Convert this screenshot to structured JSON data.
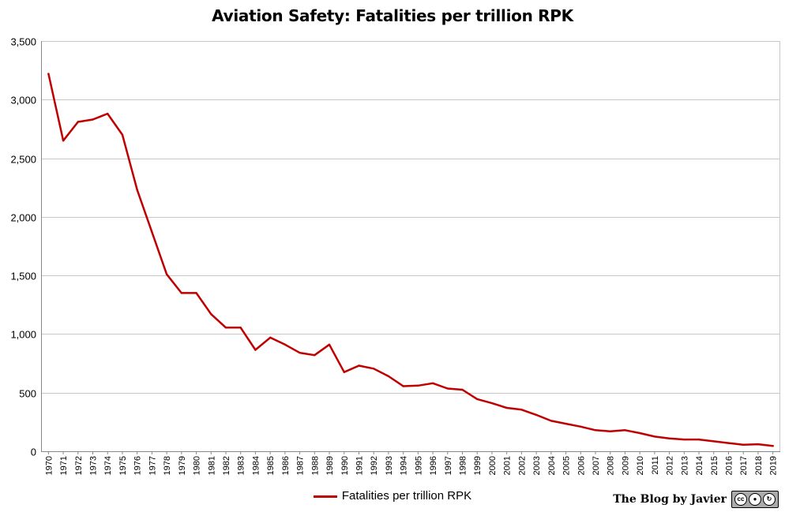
{
  "chart_data": {
    "type": "line",
    "title": "Aviation Safety: Fatalities per trillion RPK",
    "x": [
      "1970",
      "1971",
      "1972",
      "1973",
      "1974",
      "1975",
      "1976",
      "1977",
      "1978",
      "1979",
      "1980",
      "1981",
      "1982",
      "1983",
      "1984",
      "1985",
      "1986",
      "1987",
      "1988",
      "1989",
      "1990",
      "1991",
      "1992",
      "1993",
      "1994",
      "1995",
      "1996",
      "1997",
      "1998",
      "1999",
      "2000",
      "2001",
      "2002",
      "2003",
      "2004",
      "2005",
      "2006",
      "2007",
      "2008",
      "2009",
      "2010",
      "2011",
      "2012",
      "2013",
      "2014",
      "2015",
      "2016",
      "2017",
      "2018",
      "2019"
    ],
    "series": [
      {
        "name": "Fatalities per trillion RPK",
        "color": "#c00000",
        "values": [
          3220,
          2650,
          2810,
          2830,
          2880,
          2700,
          2230,
          1870,
          1510,
          1350,
          1350,
          1170,
          1055,
          1055,
          865,
          970,
          910,
          840,
          820,
          910,
          675,
          730,
          705,
          640,
          555,
          560,
          580,
          535,
          525,
          445,
          410,
          370,
          355,
          310,
          260,
          235,
          210,
          180,
          170,
          180,
          155,
          125,
          110,
          100,
          100,
          85,
          70,
          55,
          60,
          45
        ]
      }
    ],
    "ylim": [
      0,
      3500
    ],
    "yticks": [
      0,
      500,
      1000,
      1500,
      2000,
      2500,
      3000,
      3500
    ],
    "ytick_labels": [
      "0",
      "500",
      "1,000",
      "1,500",
      "2,000",
      "2,500",
      "3,000",
      "3,500"
    ],
    "grid": true,
    "legend": "bottom"
  },
  "watermark": {
    "text": "The Blog by Javier",
    "badge_icon": "cc-by-sa-icon"
  }
}
